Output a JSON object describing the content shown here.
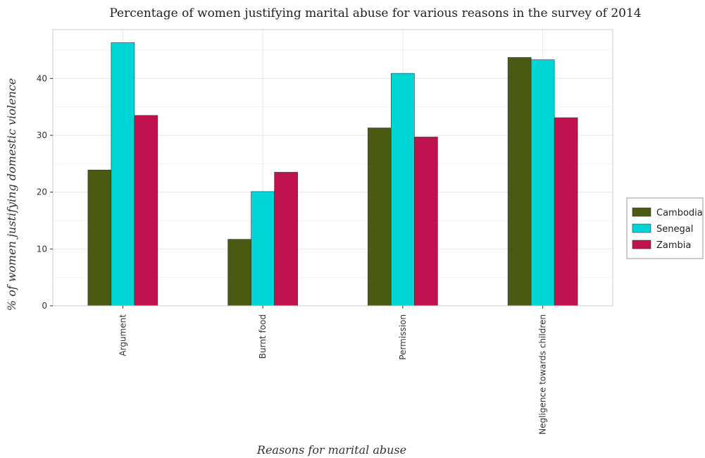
{
  "chart_data": {
    "type": "bar",
    "title": "Percentage of women justifying marital abuse for various reasons in the survey of 2014",
    "xlabel": "Reasons for marital abuse",
    "ylabel": "% of women justifying domestic violence",
    "categories": [
      "Argument",
      "Burnt food",
      "Permission",
      "Negligence towards children"
    ],
    "series": [
      {
        "name": "Cambodia",
        "values": [
          23.9,
          11.7,
          31.3,
          43.7
        ],
        "color": "#4b5a13"
      },
      {
        "name": "Senegal",
        "values": [
          46.3,
          20.1,
          40.9,
          43.3
        ],
        "color": "#00d5d5"
      },
      {
        "name": "Zambia",
        "values": [
          33.5,
          23.5,
          29.7,
          33.1
        ],
        "color": "#c0124e"
      }
    ],
    "ylim": [
      0,
      48.6
    ],
    "yticks": [
      0,
      10,
      20,
      30,
      40
    ],
    "grid": true,
    "legend_position": "right"
  }
}
